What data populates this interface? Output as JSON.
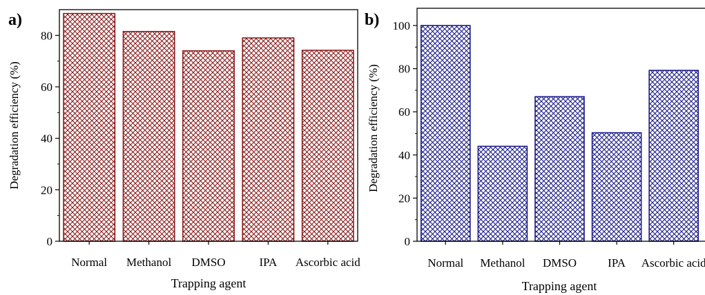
{
  "chart_data": [
    {
      "panel_label": "a)",
      "type": "bar",
      "categories": [
        "Normal",
        "Methanol",
        "DMSO",
        "IPA",
        "Ascorbic acid"
      ],
      "values": [
        88.5,
        81.5,
        74,
        79,
        74.2
      ],
      "xlabel": "Trapping agent",
      "ylabel": "Degradation efficiency (%)",
      "ylim": [
        0,
        90
      ],
      "yticks": [
        "0",
        "20",
        "40",
        "60",
        "80"
      ],
      "color": "#8b1a1a",
      "fill_pattern": "crosshatch",
      "grid": false
    },
    {
      "panel_label": "b)",
      "type": "bar",
      "categories": [
        "Normal",
        "Methanol",
        "DMSO",
        "IPA",
        "Ascorbic acid"
      ],
      "values": [
        100,
        44,
        67,
        50.3,
        79.2
      ],
      "xlabel": "Trapping agent",
      "ylabel": "Degradation efficiency (%)",
      "ylim": [
        0,
        108
      ],
      "yticks": [
        "0",
        "20",
        "40",
        "60",
        "80",
        "100"
      ],
      "color": "#1a1a8b",
      "fill_pattern": "crosshatch",
      "grid": false
    }
  ]
}
